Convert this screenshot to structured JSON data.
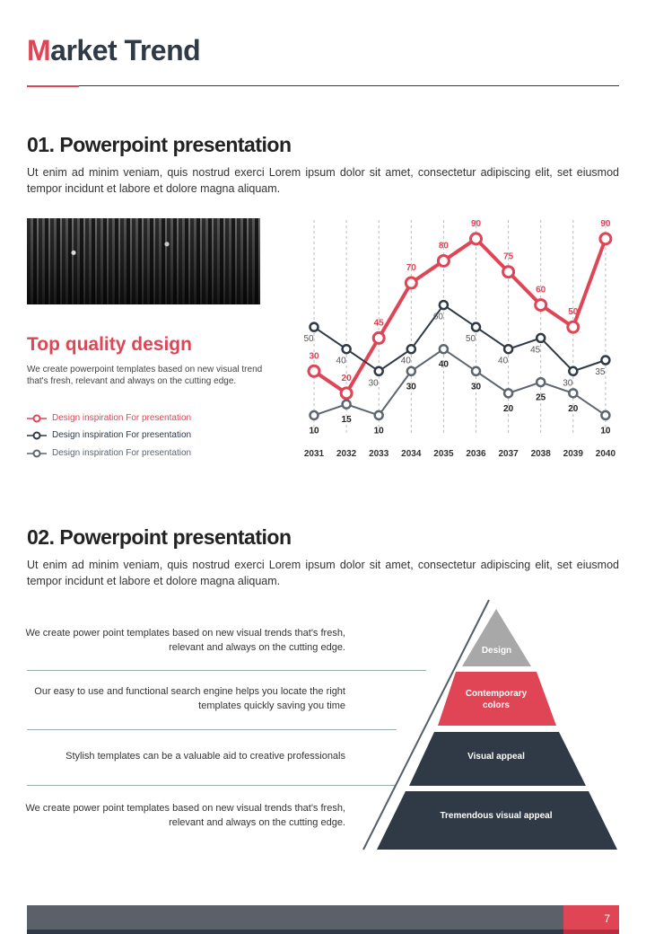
{
  "header": {
    "title_first": "M",
    "title_rest": "arket Trend"
  },
  "section1": {
    "heading": "01. Powerpoint presentation",
    "text": "Ut enim ad minim veniam, quis nostrud exerci  Lorem ipsum dolor sit amet, consectetur adipiscing elit, set eiusmod tempor incidunt et labore et dolore magna aliquam.",
    "subheading": "Top quality design",
    "subtext": "We create powerpoint templates based on new visual trend that's fresh, relevant and always on the cutting edge.",
    "legend": [
      "Design inspiration For presentation",
      "Design inspiration For presentation",
      "Design inspiration For presentation"
    ]
  },
  "chart_data": {
    "type": "line",
    "categories": [
      "2031",
      "2032",
      "2033",
      "2034",
      "2035",
      "2036",
      "2037",
      "2038",
      "2039",
      "2040"
    ],
    "series": [
      {
        "name": "Design inspiration For presentation",
        "color": "#e04556",
        "values": [
          30,
          20,
          45,
          70,
          80,
          90,
          75,
          60,
          50,
          90
        ]
      },
      {
        "name": "Design inspiration For presentation",
        "color": "#2f3a46",
        "values": [
          50,
          40,
          30,
          40,
          60,
          50,
          40,
          45,
          30,
          35
        ]
      },
      {
        "name": "Design inspiration For presentation",
        "color": "#5d6570",
        "values": [
          10,
          15,
          10,
          30,
          40,
          30,
          20,
          25,
          20,
          10
        ]
      }
    ],
    "ylim": [
      0,
      100
    ],
    "grid": "vertical dashed"
  },
  "section2": {
    "heading": "02. Powerpoint presentation",
    "text": "Ut enim ad minim veniam, quis nostrud exerci  Lorem ipsum dolor sit amet, consectetur adipiscing elit, set eiusmod tempor incidunt et labore et dolore magna aliquam.",
    "rows": [
      "We create power point templates based on new visual trends that's fresh, relevant and always on the cutting edge.",
      "Our easy to use and functional search engine helps you locate the right templates quickly saving you time",
      "Stylish templates can be a valuable aid to creative professionals",
      "We create power point templates based on new visual trends that's fresh, relevant and always on the cutting edge."
    ],
    "pyramid": [
      "Design",
      "Contemporary colors",
      "Visual appeal",
      "Tremendous visual appeal"
    ]
  },
  "footer": {
    "page": "7"
  }
}
